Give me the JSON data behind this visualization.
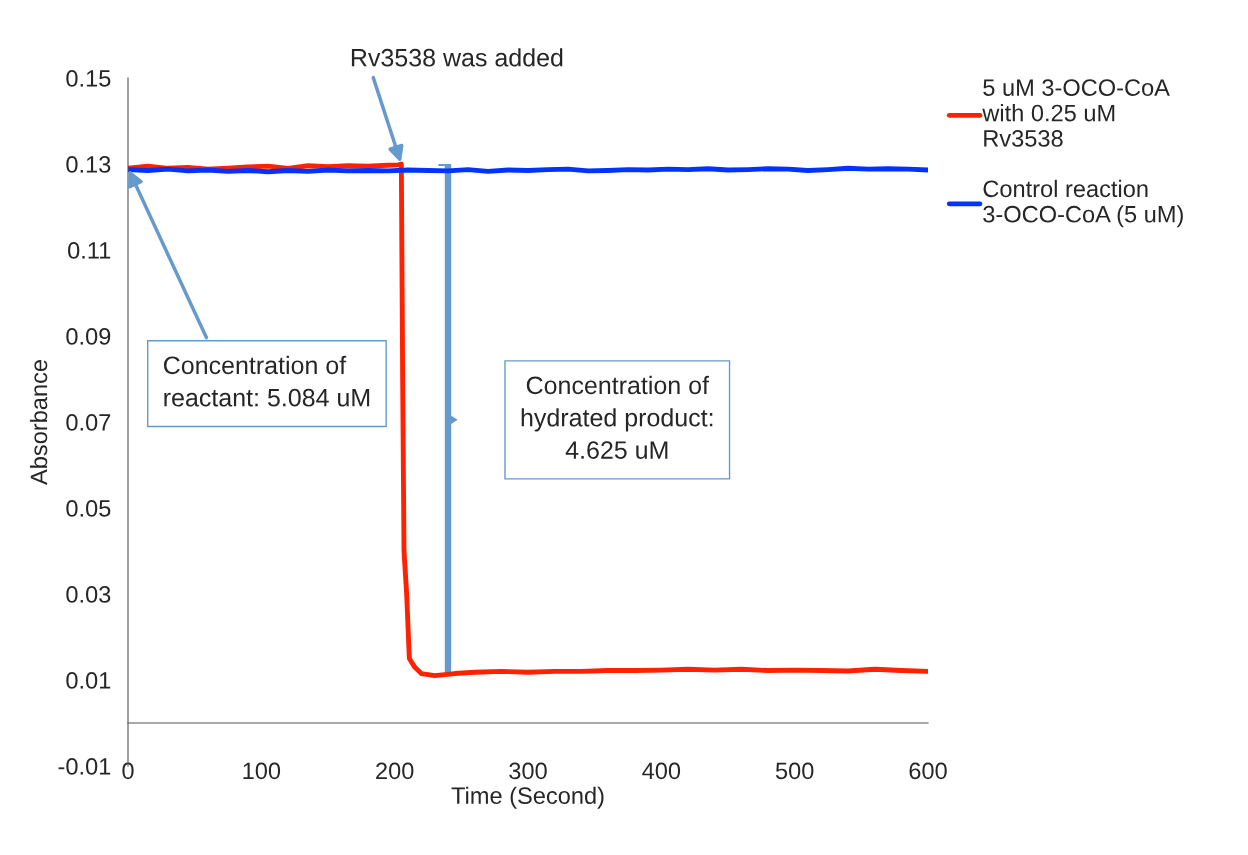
{
  "chart_data": {
    "type": "line",
    "xlabel": "Time (Second)",
    "ylabel": "Absorbance",
    "xlim": [
      0,
      600
    ],
    "xticks": [
      0,
      100,
      200,
      300,
      400,
      500,
      600
    ],
    "ylim": [
      -0.01,
      0.15
    ],
    "yticks": [
      -0.01,
      0.01,
      0.03,
      0.05,
      0.07,
      0.09,
      0.11,
      0.13,
      0.15
    ],
    "legend": "right",
    "grid": false,
    "series": [
      {
        "name": "5 uM 3-OCO-CoA\nwith 0.25 uM\nRv3538",
        "color": "#ff2200",
        "x": [
          0,
          15,
          30,
          45,
          60,
          75,
          90,
          105,
          120,
          135,
          150,
          165,
          180,
          195,
          203,
          205,
          206,
          207,
          209,
          211,
          215,
          220,
          230,
          245,
          260,
          280,
          300,
          320,
          340,
          360,
          380,
          400,
          420,
          440,
          460,
          480,
          500,
          520,
          540,
          560,
          580,
          600
        ],
        "values": [
          0.129,
          0.1295,
          0.129,
          0.1292,
          0.1288,
          0.129,
          0.1293,
          0.1295,
          0.129,
          0.1296,
          0.1294,
          0.1296,
          0.1295,
          0.1297,
          0.1298,
          0.13,
          0.08,
          0.04,
          0.03,
          0.015,
          0.013,
          0.0115,
          0.011,
          0.0115,
          0.0118,
          0.012,
          0.0118,
          0.012,
          0.012,
          0.0122,
          0.0122,
          0.0123,
          0.0125,
          0.0123,
          0.0125,
          0.0122,
          0.0123,
          0.0122,
          0.0121,
          0.0125,
          0.0122,
          0.012
        ]
      },
      {
        "name": "Control reaction\n3-OCO-CoA (5 uM)",
        "color": "#0033ff",
        "x": [
          0,
          15,
          30,
          45,
          60,
          75,
          90,
          105,
          120,
          135,
          150,
          165,
          180,
          195,
          210,
          225,
          240,
          255,
          270,
          285,
          300,
          315,
          330,
          345,
          360,
          375,
          390,
          405,
          420,
          435,
          450,
          465,
          480,
          495,
          510,
          525,
          540,
          555,
          570,
          585,
          600
        ],
        "values": [
          0.1287,
          0.1285,
          0.1288,
          0.1284,
          0.1286,
          0.1283,
          0.1285,
          0.1282,
          0.1285,
          0.1283,
          0.1286,
          0.1284,
          0.1285,
          0.1284,
          0.1286,
          0.1285,
          0.1284,
          0.1287,
          0.1283,
          0.1286,
          0.1285,
          0.1287,
          0.1288,
          0.1284,
          0.1285,
          0.1287,
          0.1286,
          0.1288,
          0.1287,
          0.1289,
          0.1286,
          0.1287,
          0.1289,
          0.1288,
          0.1285,
          0.1287,
          0.129,
          0.1288,
          0.1289,
          0.1288,
          0.1286
        ]
      }
    ],
    "annotations": [
      {
        "text": "Rv3538 was added",
        "x": 205,
        "y": 0.13
      },
      {
        "text": "Concentration of\nreactant: 5.084 uM",
        "x": 0,
        "y": 0.129
      },
      "Concentration of\nhydrated product:\n4.625 uM"
    ]
  }
}
